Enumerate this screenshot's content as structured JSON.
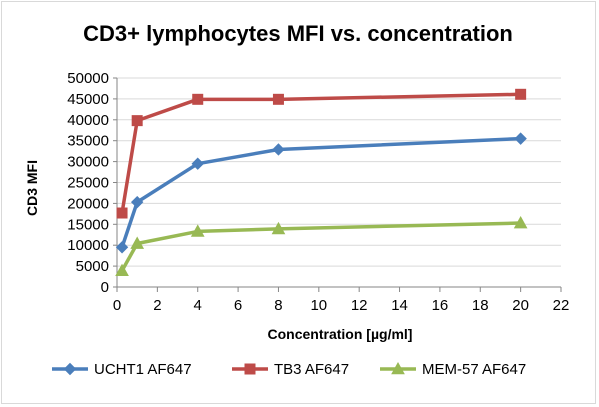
{
  "chart_data": {
    "type": "line",
    "title": "CD3+ lymphocytes MFI vs. concentration",
    "xlabel": "Concentration [µg/ml]",
    "ylabel": "CD3 MFI",
    "xlim": [
      0,
      22
    ],
    "ylim": [
      0,
      50000
    ],
    "x_ticks": [
      0,
      2,
      4,
      6,
      8,
      10,
      12,
      14,
      16,
      18,
      20,
      22
    ],
    "y_ticks": [
      0,
      5000,
      10000,
      15000,
      20000,
      25000,
      30000,
      35000,
      40000,
      45000,
      50000
    ],
    "grid": "horizontal",
    "legend_position": "bottom",
    "series": [
      {
        "name": "UCHT1 AF647",
        "color": "#4a7ebb",
        "marker": "diamond",
        "x": [
          0.25,
          1,
          4,
          8,
          20
        ],
        "y": [
          9500,
          20300,
          29500,
          32900,
          35500
        ]
      },
      {
        "name": "TB3 AF647",
        "color": "#be4b48",
        "marker": "square",
        "x": [
          0.25,
          1,
          4,
          8,
          20
        ],
        "y": [
          17700,
          39800,
          44900,
          44900,
          46100
        ]
      },
      {
        "name": "MEM-57 AF647",
        "color": "#98b954",
        "marker": "triangle",
        "x": [
          0.25,
          1,
          4,
          8,
          20
        ],
        "y": [
          3900,
          10400,
          13300,
          13900,
          15300
        ]
      }
    ]
  }
}
